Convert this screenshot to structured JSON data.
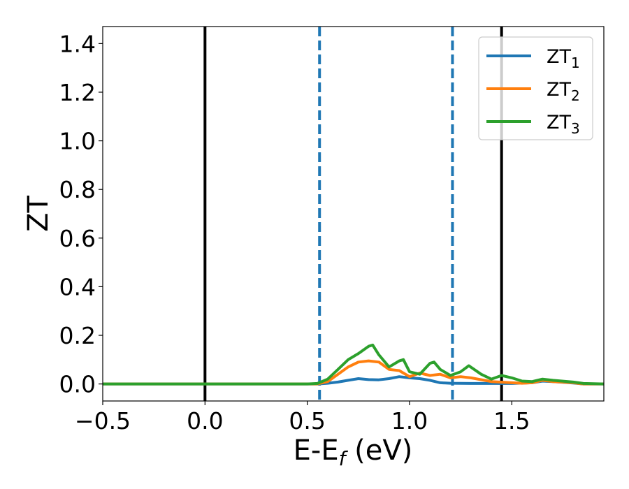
{
  "chart_data": {
    "type": "line",
    "xlabel": "E-E",
    "xlabel_sub": "f",
    "xlabel_suffix": " (eV)",
    "ylabel": "ZT",
    "xlim": [
      -0.5,
      1.95
    ],
    "ylim": [
      -0.07,
      1.47
    ],
    "xticks": [
      -0.5,
      0.0,
      0.5,
      1.0,
      1.5
    ],
    "xtick_labels": [
      "−0.5",
      "0.0",
      "0.5",
      "1.0",
      "1.5"
    ],
    "yticks": [
      0.0,
      0.2,
      0.4,
      0.6,
      0.8,
      1.0,
      1.2,
      1.4
    ],
    "ytick_labels": [
      "0.0",
      "0.2",
      "0.4",
      "0.6",
      "0.8",
      "1.0",
      "1.2",
      "1.4"
    ],
    "grid": false,
    "legend_position": "top-right",
    "vlines": [
      {
        "x": 0.0,
        "color": "#000000",
        "style": "solid"
      },
      {
        "x": 1.45,
        "color": "#000000",
        "style": "solid"
      },
      {
        "x": 0.56,
        "color": "#1f77b4",
        "style": "dashed"
      },
      {
        "x": 1.21,
        "color": "#1f77b4",
        "style": "dashed"
      }
    ],
    "series": [
      {
        "name": "ZT",
        "sub": "1",
        "color": "#1f77b4",
        "x": [
          -0.5,
          0.0,
          0.5,
          0.55,
          0.6,
          0.65,
          0.7,
          0.75,
          0.8,
          0.85,
          0.9,
          0.95,
          1.0,
          1.05,
          1.1,
          1.15,
          1.2,
          1.3,
          1.4,
          1.5,
          1.6,
          1.65,
          1.7,
          1.8,
          1.85,
          1.95
        ],
        "y": [
          0.0,
          0.0,
          0.0,
          0.0,
          0.003,
          0.008,
          0.015,
          0.022,
          0.018,
          0.017,
          0.022,
          0.03,
          0.025,
          0.022,
          0.015,
          0.005,
          0.003,
          0.002,
          0.002,
          0.002,
          0.005,
          0.012,
          0.01,
          0.004,
          0.0,
          0.0
        ]
      },
      {
        "name": "ZT",
        "sub": "2",
        "color": "#ff7f0e",
        "x": [
          -0.5,
          0.0,
          0.5,
          0.55,
          0.6,
          0.65,
          0.7,
          0.75,
          0.8,
          0.85,
          0.9,
          0.95,
          1.0,
          1.05,
          1.1,
          1.15,
          1.2,
          1.25,
          1.3,
          1.4,
          1.5,
          1.55,
          1.6,
          1.65,
          1.7,
          1.8,
          1.85,
          1.95
        ],
        "y": [
          0.0,
          0.0,
          0.0,
          0.0,
          0.01,
          0.04,
          0.07,
          0.09,
          0.095,
          0.09,
          0.06,
          0.055,
          0.03,
          0.045,
          0.035,
          0.04,
          0.025,
          0.03,
          0.025,
          0.01,
          0.005,
          0.003,
          0.005,
          0.015,
          0.01,
          0.005,
          0.0,
          0.0
        ]
      },
      {
        "name": "ZT",
        "sub": "3",
        "color": "#2ca02c",
        "x": [
          -0.5,
          0.0,
          0.5,
          0.55,
          0.6,
          0.65,
          0.7,
          0.75,
          0.8,
          0.82,
          0.85,
          0.9,
          0.95,
          0.97,
          1.0,
          1.05,
          1.1,
          1.12,
          1.15,
          1.2,
          1.25,
          1.29,
          1.35,
          1.4,
          1.45,
          1.5,
          1.55,
          1.6,
          1.65,
          1.7,
          1.8,
          1.85,
          1.95
        ],
        "y": [
          0.0,
          0.0,
          0.0,
          0.002,
          0.02,
          0.06,
          0.1,
          0.125,
          0.155,
          0.16,
          0.12,
          0.07,
          0.095,
          0.1,
          0.05,
          0.04,
          0.085,
          0.09,
          0.06,
          0.035,
          0.05,
          0.075,
          0.04,
          0.02,
          0.035,
          0.025,
          0.012,
          0.01,
          0.02,
          0.015,
          0.008,
          0.002,
          0.0
        ]
      }
    ]
  }
}
